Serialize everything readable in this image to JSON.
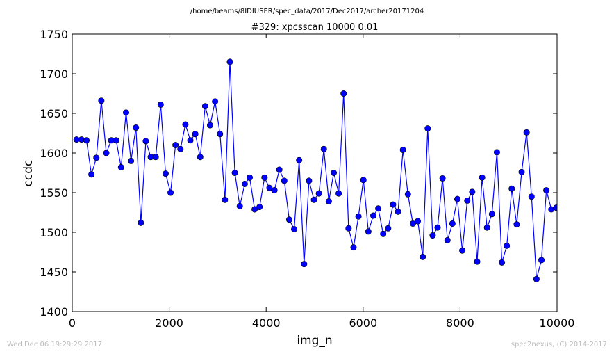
{
  "chart_data": {
    "type": "line",
    "suptitle": "/home/beams/8IDIUSER/spec_data/2017/Dec2017/archer20171204",
    "title": "#329: xpcsscan 10000 0.01",
    "x_label": "img_n",
    "y_label": "ccdc",
    "footer_left": "Wed Dec 06 19:29:29 2017",
    "footer_right": "spec2nexus, (C) 2014-2017",
    "xlim": [
      0,
      10000
    ],
    "xticks": [
      0,
      2000,
      4000,
      6000,
      8000,
      10000
    ],
    "ylim": [
      1400,
      1750
    ],
    "yticks": [
      1400,
      1450,
      1500,
      1550,
      1600,
      1650,
      1700,
      1750
    ],
    "grid": false,
    "x": [
      90,
      192,
      294,
      396,
      498,
      600,
      702,
      804,
      906,
      1008,
      1110,
      1212,
      1314,
      1416,
      1518,
      1620,
      1722,
      1824,
      1926,
      2028,
      2130,
      2232,
      2334,
      2436,
      2538,
      2640,
      2742,
      2844,
      2946,
      3048,
      3150,
      3252,
      3354,
      3456,
      3558,
      3660,
      3762,
      3864,
      3966,
      4068,
      4170,
      4272,
      4374,
      4476,
      4578,
      4680,
      4782,
      4884,
      4986,
      5088,
      5190,
      5292,
      5394,
      5496,
      5598,
      5700,
      5802,
      5904,
      6006,
      6108,
      6210,
      6312,
      6414,
      6516,
      6618,
      6720,
      6822,
      6924,
      7026,
      7128,
      7230,
      7332,
      7434,
      7536,
      7638,
      7740,
      7842,
      7944,
      8046,
      8148,
      8250,
      8352,
      8454,
      8556,
      8658,
      8760,
      8862,
      8964,
      9066,
      9168,
      9270,
      9372,
      9474,
      9576,
      9678,
      9780,
      9882,
      9984
    ],
    "series": [
      {
        "color": "#0000ff",
        "values": [
          1617,
          1617,
          1616,
          1573,
          1594,
          1666,
          1600,
          1616,
          1616,
          1582,
          1651,
          1590,
          1632,
          1512,
          1615,
          1595,
          1595,
          1661,
          1574,
          1550,
          1610,
          1605,
          1636,
          1616,
          1624,
          1595,
          1659,
          1635,
          1665,
          1624,
          1541,
          1715,
          1575,
          1533,
          1561,
          1569,
          1529,
          1532,
          1569,
          1556,
          1553,
          1579,
          1565,
          1516,
          1504,
          1591,
          1460,
          1565,
          1541,
          1549,
          1605,
          1539,
          1575,
          1549,
          1675,
          1505,
          1481,
          1520,
          1566,
          1501,
          1521,
          1530,
          1498,
          1505,
          1535,
          1526,
          1604,
          1548,
          1511,
          1514,
          1469,
          1631,
          1496,
          1506,
          1568,
          1490,
          1511,
          1542,
          1477,
          1540,
          1551,
          1463,
          1569,
          1506,
          1523,
          1601,
          1462,
          1483,
          1555,
          1510,
          1576,
          1626,
          1545,
          1441,
          1465,
          1553,
          1529,
          1531
        ]
      }
    ]
  }
}
